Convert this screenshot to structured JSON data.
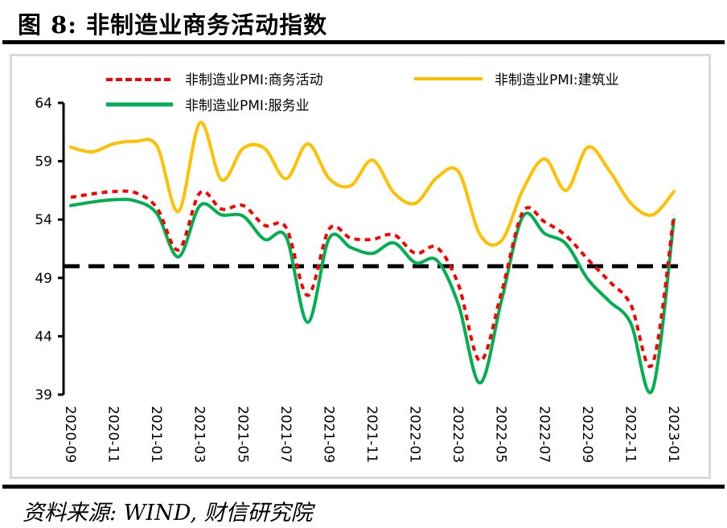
{
  "title": "图 8:  非制造业商务活动指数",
  "source": "资料来源:  WIND,  财信研究院",
  "chart_data": {
    "type": "line",
    "title": "非制造业商务活动指数",
    "xlabel": "",
    "ylabel": "",
    "ylim": [
      39,
      64
    ],
    "yticks": [
      "64",
      "59",
      "54",
      "49",
      "44",
      "39"
    ],
    "ytick_values": [
      64,
      59,
      54,
      49,
      44,
      39
    ],
    "grid": false,
    "legend_position": "top",
    "x": [
      "2020-09",
      "2020-10",
      "2020-11",
      "2020-12",
      "2021-01",
      "2021-02",
      "2021-03",
      "2021-04",
      "2021-05",
      "2021-06",
      "2021-07",
      "2021-08",
      "2021-09",
      "2021-10",
      "2021-11",
      "2021-12",
      "2022-01",
      "2022-02",
      "2022-03",
      "2022-04",
      "2022-05",
      "2022-06",
      "2022-07",
      "2022-08",
      "2022-09",
      "2022-10",
      "2022-11",
      "2022-12",
      "2023-01"
    ],
    "xtick_labels": [
      "2020-09",
      "2020-11",
      "2021-01",
      "2021-03",
      "2021-05",
      "2021-07",
      "2021-09",
      "2021-11",
      "2022-01",
      "2022-03",
      "2022-05",
      "2022-07",
      "2022-09",
      "2022-11",
      "2023-01"
    ],
    "reference_line": {
      "value": 50,
      "style": "dashed",
      "color": "#000000"
    },
    "series": [
      {
        "name": "非制造业PMI:商务活动",
        "color": "#ff0000",
        "style": "dashed",
        "values": [
          55.9,
          56.2,
          56.4,
          56.3,
          55.0,
          51.4,
          56.3,
          54.9,
          55.2,
          53.5,
          53.3,
          47.5,
          53.2,
          52.4,
          52.3,
          52.7,
          51.1,
          51.6,
          48.4,
          41.9,
          47.8,
          54.7,
          53.8,
          52.6,
          50.6,
          48.7,
          46.7,
          41.6,
          54.4
        ]
      },
      {
        "name": "非制造业PMI:建筑业",
        "color": "#ffc000",
        "style": "solid",
        "values": [
          60.2,
          59.8,
          60.5,
          60.7,
          60.3,
          54.7,
          62.3,
          57.4,
          60.1,
          60.1,
          57.5,
          60.5,
          57.5,
          56.9,
          59.1,
          56.3,
          55.4,
          57.6,
          58.1,
          52.7,
          52.2,
          56.6,
          59.2,
          56.5,
          60.2,
          58.2,
          55.4,
          54.4,
          56.4
        ]
      },
      {
        "name": "非制造业PMI:服务业",
        "color": "#00b050",
        "style": "solid",
        "values": [
          55.2,
          55.5,
          55.7,
          55.6,
          54.5,
          50.8,
          55.2,
          54.4,
          54.3,
          52.3,
          52.5,
          45.2,
          52.4,
          51.6,
          51.1,
          52.0,
          50.3,
          50.5,
          46.7,
          40.0,
          47.1,
          54.3,
          52.8,
          51.9,
          48.9,
          47.0,
          45.1,
          39.4,
          54.0
        ]
      }
    ]
  }
}
